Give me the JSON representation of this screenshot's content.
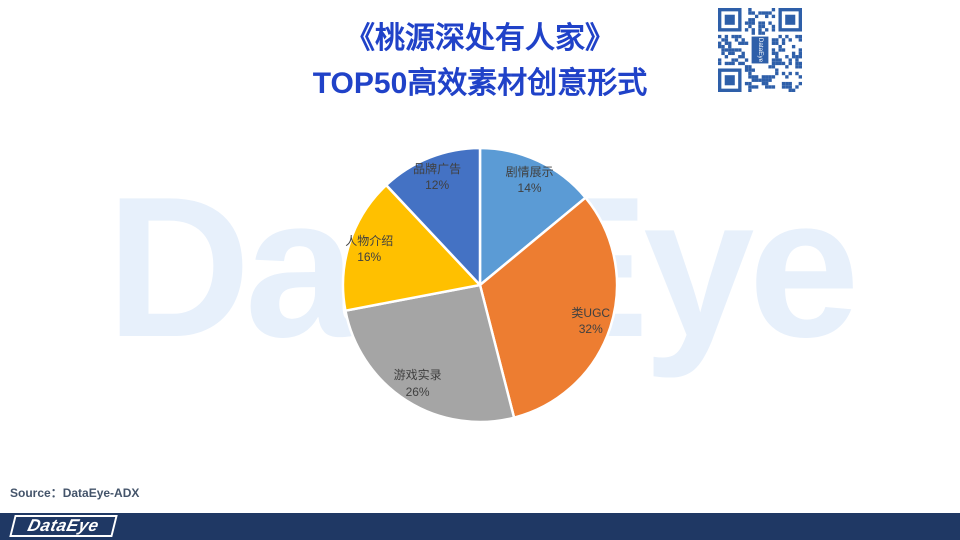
{
  "header": {
    "title_line1": "《桃源深处有人家》",
    "title_line2": "TOP50高效素材创意形式"
  },
  "chart_data": {
    "type": "pie",
    "title": "《桃源深处有人家》TOP50高效素材创意形式",
    "categories": [
      "剧情展示",
      "类UGC",
      "游戏实录",
      "人物介绍",
      "品牌广告"
    ],
    "values": [
      14,
      32,
      26,
      16,
      12
    ],
    "unit": "%",
    "colors": [
      "#5B9BD5",
      "#ED7D31",
      "#A5A5A5",
      "#FFC000",
      "#4472C4"
    ],
    "start_angle_deg": 0,
    "direction": "clockwise",
    "slice_border_color": "#FFFFFF",
    "labels_show": "category name and percent inside slices",
    "legend": "none"
  },
  "watermark": {
    "text": "DataEye"
  },
  "qr": {
    "center_text": "DataEye"
  },
  "footer": {
    "source_label": "Source：",
    "source_value": "DataEye-ADX",
    "logo_text": "DataEye"
  },
  "theme": {
    "title_color": "#2042C8",
    "watermark_color": "#E7F0FB",
    "bar_color": "#1F3864",
    "source_color": "#44546A",
    "qr_color": "#2E5FA9",
    "label_color": "#404040"
  }
}
